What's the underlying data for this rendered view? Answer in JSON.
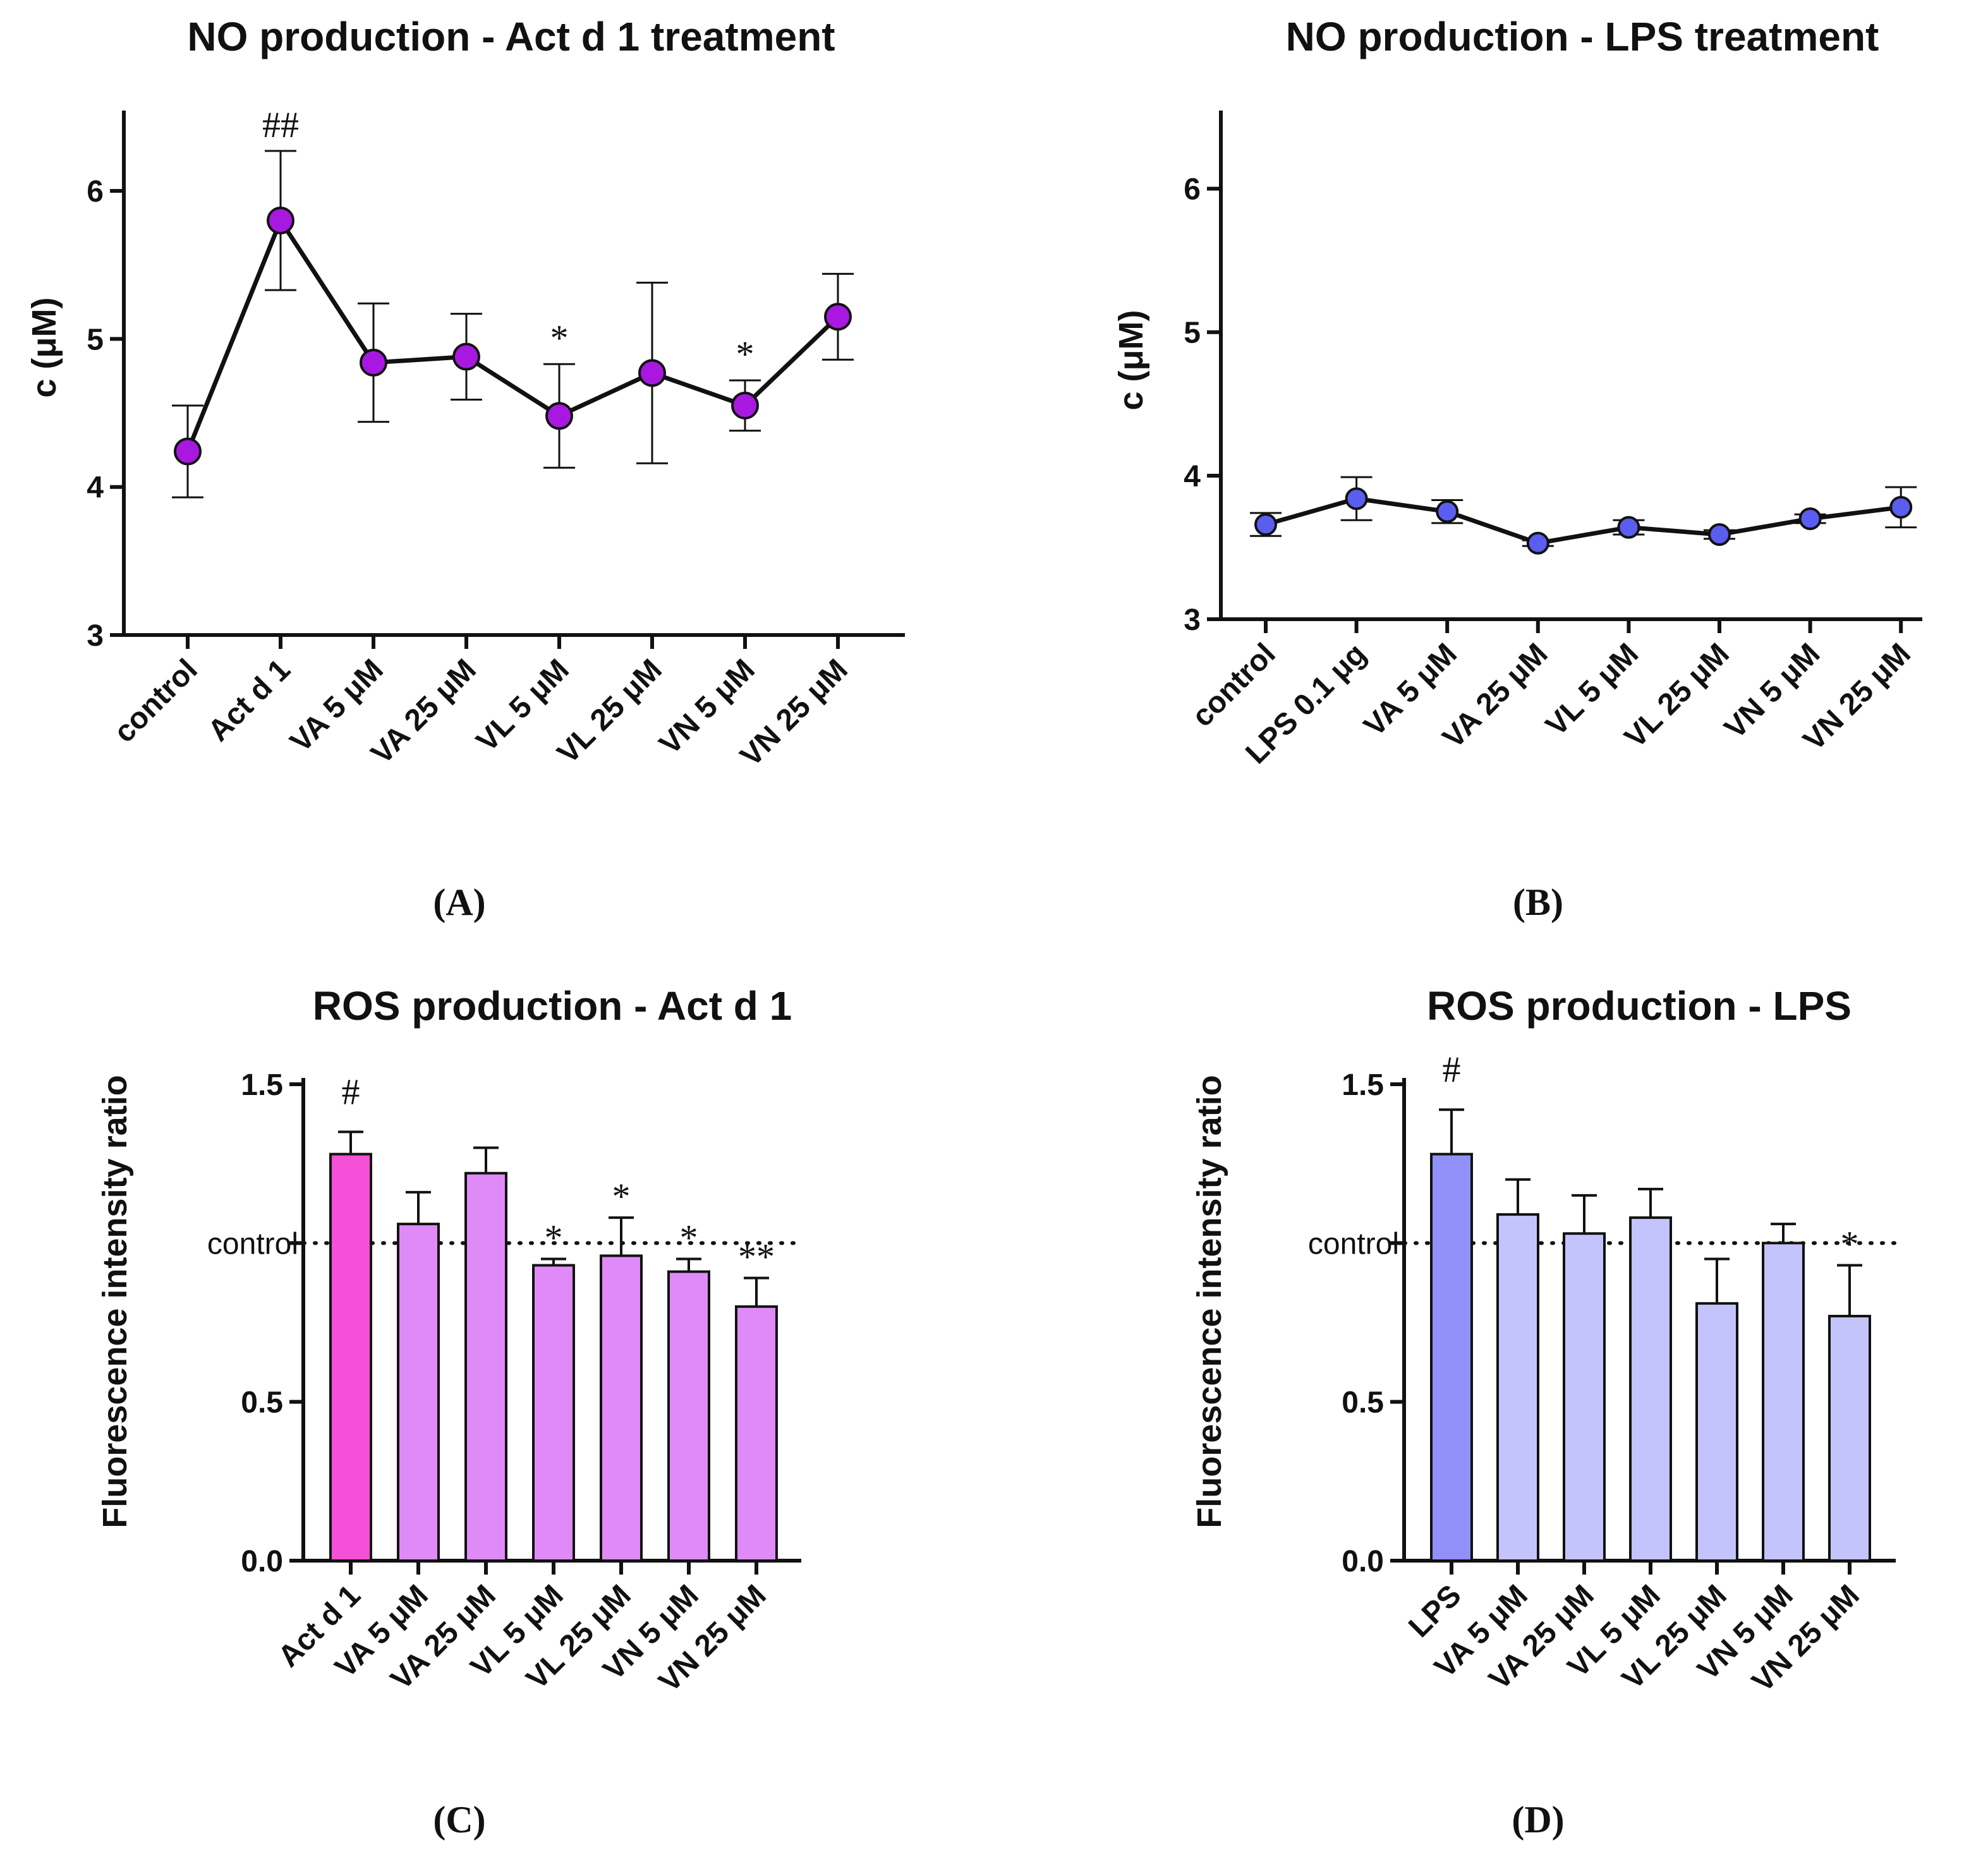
{
  "chart_data": [
    {
      "id": "A",
      "type": "line",
      "panel_label": "(A)",
      "title": "NO production - Act d 1 treatment",
      "ylabel": "c (μM)",
      "xlabel": "",
      "ylim": [
        3,
        6.5
      ],
      "yticks": [
        "3",
        "4",
        "5",
        "6"
      ],
      "categories": [
        "control",
        "Act d 1",
        "VA 5 μM",
        "VA 25 μM",
        "VL 5 μM",
        "VL 25 μM",
        "VN 5 μM",
        "VN 25 μM"
      ],
      "values": [
        4.24,
        5.8,
        4.84,
        4.88,
        4.48,
        4.77,
        4.55,
        5.15
      ],
      "errors": [
        0.31,
        0.47,
        0.4,
        0.29,
        0.35,
        0.61,
        0.17,
        0.29
      ],
      "annotations": [
        "",
        "##",
        "",
        "",
        "*",
        "",
        "*",
        ""
      ],
      "color": "#a818e0"
    },
    {
      "id": "B",
      "type": "line",
      "panel_label": "(B)",
      "title": "NO production - LPS treatment",
      "ylabel": "c (μM)",
      "xlabel": "",
      "ylim": [
        3,
        6.5
      ],
      "yticks": [
        "3",
        "4",
        "5",
        "6"
      ],
      "categories": [
        "control",
        "LPS 0.1 μg",
        "VA 5 μM",
        "VA 25 μM",
        "VL 5 μM",
        "VL 25 μM",
        "VN 5 μM",
        "VN 25 μM"
      ],
      "values": [
        3.66,
        3.84,
        3.75,
        3.53,
        3.64,
        3.59,
        3.7,
        3.78
      ],
      "errors": [
        0.08,
        0.15,
        0.08,
        0.02,
        0.05,
        0.03,
        0.03,
        0.14
      ],
      "annotations": [
        "",
        "",
        "",
        "",
        "",
        "",
        "",
        ""
      ],
      "color": "#5a5ef0"
    },
    {
      "id": "C",
      "type": "bar",
      "panel_label": "(C)",
      "title": "ROS production - Act d 1",
      "ylabel": "Fluorescence intensity ratio",
      "xlabel": "",
      "ylim": [
        0,
        1.5
      ],
      "yticks": [
        "0.0",
        "0.5",
        "1.5"
      ],
      "reference_line": {
        "value": 1.0,
        "label": "control"
      },
      "categories": [
        "Act d 1",
        "VA 5 μM",
        "VA 25 μM",
        "VL 5 μM",
        "VL 25 μM",
        "VN 5 μM",
        "VN 25 μM"
      ],
      "values": [
        1.28,
        1.06,
        1.22,
        0.93,
        0.96,
        0.91,
        0.8
      ],
      "errors": [
        0.07,
        0.1,
        0.08,
        0.02,
        0.12,
        0.04,
        0.09
      ],
      "annotations": [
        "#",
        "",
        "",
        "*",
        "*",
        "*",
        "**"
      ],
      "colors": [
        "#f450d8",
        "#df8af7",
        "#df8af7",
        "#df8af7",
        "#df8af7",
        "#df8af7",
        "#df8af7"
      ]
    },
    {
      "id": "D",
      "type": "bar",
      "panel_label": "(D)",
      "title": "ROS production - LPS",
      "ylabel": "Fluorescence intensity ratio",
      "xlabel": "",
      "ylim": [
        0,
        1.5
      ],
      "yticks": [
        "0.0",
        "0.5",
        "1.5"
      ],
      "reference_line": {
        "value": 1.0,
        "label": "control"
      },
      "categories": [
        "LPS",
        "VA 5 μM",
        "VA 25 μM",
        "VL 5 μM",
        "VL 25 μM",
        "VN 5 μM",
        "VN 25 μM"
      ],
      "values": [
        1.28,
        1.09,
        1.03,
        1.08,
        0.81,
        1.0,
        0.77
      ],
      "errors": [
        0.14,
        0.11,
        0.12,
        0.09,
        0.14,
        0.06,
        0.16
      ],
      "annotations": [
        "#",
        "",
        "",
        "",
        "",
        "",
        "*"
      ],
      "colors": [
        "#9090f8",
        "#c4c4fc",
        "#c4c4fc",
        "#c4c4fc",
        "#c4c4fc",
        "#c4c4fc",
        "#c4c4fc"
      ]
    }
  ]
}
